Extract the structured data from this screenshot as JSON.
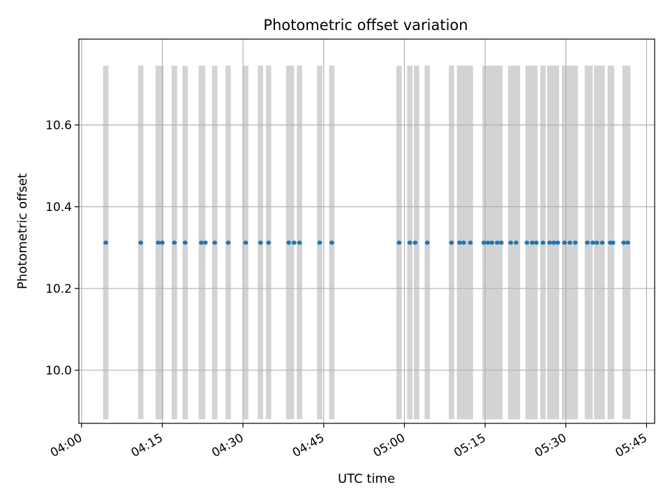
{
  "chart_data": {
    "type": "scatter",
    "title": "Photometric offset variation",
    "xlabel": "UTC time",
    "ylabel": "Photometric offset",
    "xlim": [
      "03:59:30",
      "05:46:30"
    ],
    "ylim": [
      9.87,
      10.81
    ],
    "grid": true,
    "x_ticks": [
      "04:00",
      "04:15",
      "04:30",
      "04:45",
      "05:00",
      "05:15",
      "05:30",
      "05:45"
    ],
    "y_ticks": [
      "10.0",
      "10.2",
      "10.4",
      "10.6"
    ],
    "y_tick_values": [
      10.0,
      10.2,
      10.4,
      10.6
    ],
    "shaded_y_range": [
      9.88,
      10.745
    ],
    "series": [
      {
        "color": "#1f77b4",
        "y_value": 10.312,
        "x": [
          "04:04:30",
          "04:11:00",
          "04:14:15",
          "04:15:00",
          "04:17:15",
          "04:19:15",
          "04:22:15",
          "04:23:00",
          "04:24:45",
          "04:27:15",
          "04:30:30",
          "04:33:15",
          "04:34:45",
          "04:38:30",
          "04:39:30",
          "04:40:30",
          "04:44:15",
          "04:46:30",
          "04:59:00",
          "05:01:00",
          "05:02:00",
          "05:04:15",
          "05:08:45",
          "05:10:15",
          "05:11:00",
          "05:12:15",
          "05:14:45",
          "05:15:30",
          "05:16:15",
          "05:17:15",
          "05:18:00",
          "05:19:45",
          "05:20:45",
          "05:22:45",
          "05:23:45",
          "05:24:30",
          "05:25:45",
          "05:27:00",
          "05:27:45",
          "05:28:30",
          "05:29:45",
          "05:30:45",
          "05:31:45",
          "05:34:00",
          "05:35:00",
          "05:35:45",
          "05:36:45",
          "05:38:15",
          "05:38:45",
          "05:40:45",
          "05:41:30"
        ]
      }
    ],
    "shaded_intervals": [
      [
        "04:04:00",
        "04:05:00"
      ],
      [
        "04:10:30",
        "04:11:30"
      ],
      [
        "04:13:45",
        "04:15:15"
      ],
      [
        "04:16:45",
        "04:17:45"
      ],
      [
        "04:18:45",
        "04:19:45"
      ],
      [
        "04:21:45",
        "04:23:00"
      ],
      [
        "04:24:15",
        "04:25:15"
      ],
      [
        "04:26:45",
        "04:27:45"
      ],
      [
        "04:30:00",
        "04:31:00"
      ],
      [
        "04:32:45",
        "04:33:45"
      ],
      [
        "04:34:15",
        "04:35:15"
      ],
      [
        "04:38:00",
        "04:39:30"
      ],
      [
        "04:40:00",
        "04:41:00"
      ],
      [
        "04:43:45",
        "04:44:45"
      ],
      [
        "04:46:00",
        "04:47:00"
      ],
      [
        "04:58:30",
        "04:59:30"
      ],
      [
        "05:00:30",
        "05:01:30"
      ],
      [
        "05:01:45",
        "05:02:45"
      ],
      [
        "05:03:45",
        "05:04:45"
      ],
      [
        "05:08:15",
        "05:09:15"
      ],
      [
        "05:09:45",
        "05:12:45"
      ],
      [
        "05:14:30",
        "05:18:15"
      ],
      [
        "05:19:15",
        "05:21:30"
      ],
      [
        "05:22:30",
        "05:24:45"
      ],
      [
        "05:25:15",
        "05:26:15"
      ],
      [
        "05:26:30",
        "05:28:45"
      ],
      [
        "05:29:15",
        "05:32:15"
      ],
      [
        "05:33:30",
        "05:35:00"
      ],
      [
        "05:35:15",
        "05:37:15"
      ],
      [
        "05:37:45",
        "05:39:00"
      ],
      [
        "05:40:30",
        "05:42:00"
      ]
    ]
  }
}
